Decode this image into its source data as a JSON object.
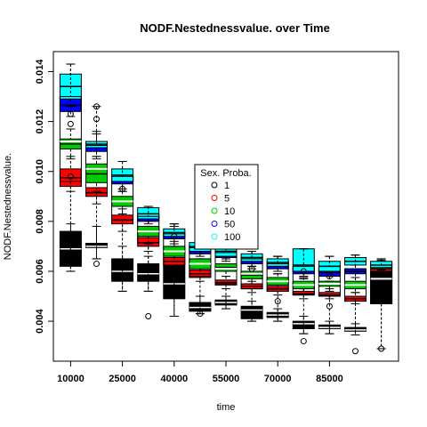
{
  "chart_data": {
    "type": "boxplot",
    "title": "NODF.Nestednessvalue. over Time",
    "xlabel": "time",
    "ylabel": "NODF.Nestednessvalue.",
    "ylim": [
      0.0024,
      0.0148
    ],
    "xlim": [
      5000,
      105000
    ],
    "x_tick_values": [
      10000,
      25000,
      40000,
      55000,
      70000,
      85000
    ],
    "x_tick_labels": [
      "10000",
      "25000",
      "40000",
      "55000",
      "70000",
      "85000"
    ],
    "y_tick_values": [
      0.004,
      0.006,
      0.008,
      0.01,
      0.012,
      0.014
    ],
    "y_tick_labels": [
      "0.004",
      "0.006",
      "0.008",
      "0.010",
      "0.012",
      "0.014"
    ],
    "legend": {
      "title": "Sex. Proba.",
      "placement": "center",
      "entries": [
        "1",
        "5",
        "10",
        "50",
        "100"
      ],
      "colors": [
        "#000000",
        "#ff0000",
        "#00cd00",
        "#0000ff",
        "#00ffff"
      ]
    },
    "overall_median_color": "#ffffff",
    "groups": [
      {
        "x": 10000,
        "series": [
          {
            "name": "1",
            "q1": 0.0062,
            "median": 0.0069,
            "q3": 0.0076,
            "lo": 0.006,
            "hi": 0.0079
          },
          {
            "name": "5",
            "q1": 0.0094,
            "median": 0.00975,
            "q3": 0.0101,
            "lo": 0.0092,
            "hi": 0.0106
          },
          {
            "name": "10",
            "q1": 0.0109,
            "median": 0.0111,
            "q3": 0.0113,
            "lo": 0.0105,
            "hi": 0.0117
          },
          {
            "name": "50",
            "q1": 0.0124,
            "median": 0.01265,
            "q3": 0.013,
            "lo": 0.0122,
            "hi": 0.0132
          },
          {
            "name": "100",
            "q1": 0.0129,
            "median": 0.0134,
            "q3": 0.0139,
            "lo": 0.0126,
            "hi": 0.0143
          },
          {
            "name": "all",
            "q1": 0.0096,
            "median": 0.0112,
            "q3": 0.013,
            "lo": 0.006,
            "hi": 0.0143
          }
        ]
      },
      {
        "x": 17500,
        "series": [
          {
            "name": "1",
            "q1": 0.00695,
            "median": 0.007,
            "q3": 0.00712,
            "lo": 0.0065,
            "hi": 0.0078
          },
          {
            "name": "5",
            "q1": 0.009,
            "median": 0.00915,
            "q3": 0.00935,
            "lo": 0.0087,
            "hi": 0.0097
          },
          {
            "name": "10",
            "q1": 0.00955,
            "median": 0.0099,
            "q3": 0.0103,
            "lo": 0.0092,
            "hi": 0.0106
          },
          {
            "name": "50",
            "q1": 0.0108,
            "median": 0.011,
            "q3": 0.01115,
            "lo": 0.0105,
            "hi": 0.0115
          },
          {
            "name": "100",
            "q1": 0.01095,
            "median": 0.01105,
            "q3": 0.0112,
            "lo": 0.0106,
            "hi": 0.0116
          },
          {
            "name": "all",
            "q1": 0.00915,
            "median": 0.0101,
            "q3": 0.0111,
            "lo": 0.0065,
            "hi": 0.0126
          }
        ]
      },
      {
        "x": 25000,
        "series": [
          {
            "name": "1",
            "q1": 0.0056,
            "median": 0.006,
            "q3": 0.0065,
            "lo": 0.0052,
            "hi": 0.007
          },
          {
            "name": "5",
            "q1": 0.0079,
            "median": 0.00805,
            "q3": 0.00825,
            "lo": 0.0076,
            "hi": 0.0085
          },
          {
            "name": "10",
            "q1": 0.0086,
            "median": 0.0088,
            "q3": 0.009,
            "lo": 0.0083,
            "hi": 0.0092
          },
          {
            "name": "50",
            "q1": 0.0095,
            "median": 0.00965,
            "q3": 0.0098,
            "lo": 0.0092,
            "hi": 0.01
          },
          {
            "name": "100",
            "q1": 0.0096,
            "median": 0.00985,
            "q3": 0.0101,
            "lo": 0.0093,
            "hi": 0.0104
          },
          {
            "name": "all",
            "q1": 0.00805,
            "median": 0.0088,
            "q3": 0.0098,
            "lo": 0.0052,
            "hi": 0.0104
          }
        ]
      },
      {
        "x": 32500,
        "series": [
          {
            "name": "1",
            "q1": 0.0056,
            "median": 0.0059,
            "q3": 0.0063,
            "lo": 0.0052,
            "hi": 0.0066
          },
          {
            "name": "5",
            "q1": 0.007,
            "median": 0.00715,
            "q3": 0.00735,
            "lo": 0.0068,
            "hi": 0.0076
          },
          {
            "name": "10",
            "q1": 0.0074,
            "median": 0.0076,
            "q3": 0.0078,
            "lo": 0.0071,
            "hi": 0.008
          },
          {
            "name": "50",
            "q1": 0.008,
            "median": 0.00815,
            "q3": 0.0083,
            "lo": 0.0078,
            "hi": 0.0085
          },
          {
            "name": "100",
            "q1": 0.0081,
            "median": 0.0083,
            "q3": 0.00855,
            "lo": 0.0079,
            "hi": 0.0086
          },
          {
            "name": "all",
            "q1": 0.00715,
            "median": 0.0076,
            "q3": 0.0082,
            "lo": 0.0052,
            "hi": 0.0086
          }
        ]
      },
      {
        "x": 40000,
        "series": [
          {
            "name": "1",
            "q1": 0.0049,
            "median": 0.0055,
            "q3": 0.00625,
            "lo": 0.0042,
            "hi": 0.0065
          },
          {
            "name": "5",
            "q1": 0.00625,
            "median": 0.0064,
            "q3": 0.00655,
            "lo": 0.006,
            "hi": 0.0068
          },
          {
            "name": "10",
            "q1": 0.0066,
            "median": 0.0068,
            "q3": 0.007,
            "lo": 0.0064,
            "hi": 0.0072
          },
          {
            "name": "50",
            "q1": 0.0073,
            "median": 0.00745,
            "q3": 0.0076,
            "lo": 0.007,
            "hi": 0.0078
          },
          {
            "name": "100",
            "q1": 0.0074,
            "median": 0.00755,
            "q3": 0.0077,
            "lo": 0.0071,
            "hi": 0.0079
          },
          {
            "name": "all",
            "q1": 0.00625,
            "median": 0.0068,
            "q3": 0.0075,
            "lo": 0.0042,
            "hi": 0.0079
          }
        ]
      },
      {
        "x": 47500,
        "series": [
          {
            "name": "1",
            "q1": 0.0044,
            "median": 0.00455,
            "q3": 0.00475,
            "lo": 0.0043,
            "hi": 0.005
          },
          {
            "name": "5",
            "q1": 0.00575,
            "median": 0.0059,
            "q3": 0.00605,
            "lo": 0.0056,
            "hi": 0.0063
          },
          {
            "name": "10",
            "q1": 0.0061,
            "median": 0.0063,
            "q3": 0.0065,
            "lo": 0.0059,
            "hi": 0.0067
          },
          {
            "name": "50",
            "q1": 0.0067,
            "median": 0.0069,
            "q3": 0.0071,
            "lo": 0.0065,
            "hi": 0.0073
          },
          {
            "name": "100",
            "q1": 0.0068,
            "median": 0.00695,
            "q3": 0.00715,
            "lo": 0.0066,
            "hi": 0.0074
          },
          {
            "name": "all",
            "q1": 0.0058,
            "median": 0.0063,
            "q3": 0.007,
            "lo": 0.0043,
            "hi": 0.0074
          }
        ]
      },
      {
        "x": 55000,
        "series": [
          {
            "name": "1",
            "q1": 0.00465,
            "median": 0.00475,
            "q3": 0.00485,
            "lo": 0.0045,
            "hi": 0.005
          },
          {
            "name": "5",
            "q1": 0.00545,
            "median": 0.00555,
            "q3": 0.00565,
            "lo": 0.0053,
            "hi": 0.0058
          },
          {
            "name": "10",
            "q1": 0.006,
            "median": 0.00615,
            "q3": 0.0063,
            "lo": 0.0058,
            "hi": 0.0065
          },
          {
            "name": "50",
            "q1": 0.00655,
            "median": 0.0067,
            "q3": 0.00685,
            "lo": 0.0064,
            "hi": 0.007
          },
          {
            "name": "100",
            "q1": 0.0066,
            "median": 0.0068,
            "q3": 0.007,
            "lo": 0.0065,
            "hi": 0.0073
          },
          {
            "name": "all",
            "q1": 0.0055,
            "median": 0.0061,
            "q3": 0.00675,
            "lo": 0.0045,
            "hi": 0.0073
          }
        ]
      },
      {
        "x": 62500,
        "series": [
          {
            "name": "1",
            "q1": 0.0041,
            "median": 0.00445,
            "q3": 0.0046,
            "lo": 0.004,
            "hi": 0.0048
          },
          {
            "name": "5",
            "q1": 0.0053,
            "median": 0.0054,
            "q3": 0.0055,
            "lo": 0.00515,
            "hi": 0.0056
          },
          {
            "name": "10",
            "q1": 0.0057,
            "median": 0.00585,
            "q3": 0.006,
            "lo": 0.0055,
            "hi": 0.0062
          },
          {
            "name": "50",
            "q1": 0.0063,
            "median": 0.00645,
            "q3": 0.0066,
            "lo": 0.0061,
            "hi": 0.0068
          },
          {
            "name": "100",
            "q1": 0.0064,
            "median": 0.00655,
            "q3": 0.0067,
            "lo": 0.0062,
            "hi": 0.007
          },
          {
            "name": "all",
            "q1": 0.0053,
            "median": 0.0059,
            "q3": 0.0065,
            "lo": 0.004,
            "hi": 0.007
          }
        ]
      },
      {
        "x": 70000,
        "series": [
          {
            "name": "1",
            "q1": 0.00415,
            "median": 0.00425,
            "q3": 0.00435,
            "lo": 0.004,
            "hi": 0.0045
          },
          {
            "name": "5",
            "q1": 0.0052,
            "median": 0.0053,
            "q3": 0.0054,
            "lo": 0.00505,
            "hi": 0.00555
          },
          {
            "name": "10",
            "q1": 0.00545,
            "median": 0.0056,
            "q3": 0.00575,
            "lo": 0.0053,
            "hi": 0.0059
          },
          {
            "name": "50",
            "q1": 0.0061,
            "median": 0.00625,
            "q3": 0.0064,
            "lo": 0.0059,
            "hi": 0.0066
          },
          {
            "name": "100",
            "q1": 0.0062,
            "median": 0.00635,
            "q3": 0.0065,
            "lo": 0.006,
            "hi": 0.0066
          },
          {
            "name": "all",
            "q1": 0.0052,
            "median": 0.0056,
            "q3": 0.0063,
            "lo": 0.004,
            "hi": 0.0066
          }
        ]
      },
      {
        "x": 77500,
        "series": [
          {
            "name": "1",
            "q1": 0.0037,
            "median": 0.0039,
            "q3": 0.004,
            "lo": 0.0035,
            "hi": 0.0042
          },
          {
            "name": "5",
            "q1": 0.00505,
            "median": 0.0051,
            "q3": 0.0052,
            "lo": 0.0049,
            "hi": 0.0053
          },
          {
            "name": "10",
            "q1": 0.0053,
            "median": 0.00545,
            "q3": 0.0056,
            "lo": 0.0051,
            "hi": 0.00575
          },
          {
            "name": "50",
            "q1": 0.0059,
            "median": 0.00605,
            "q3": 0.0062,
            "lo": 0.0057,
            "hi": 0.0064
          },
          {
            "name": "100",
            "q1": 0.006,
            "median": 0.00625,
            "q3": 0.0069,
            "lo": 0.0058,
            "hi": 0.0069
          },
          {
            "name": "all",
            "q1": 0.00505,
            "median": 0.00545,
            "q3": 0.0062,
            "lo": 0.0035,
            "hi": 0.0069
          }
        ]
      },
      {
        "x": 85000,
        "series": [
          {
            "name": "1",
            "q1": 0.0037,
            "median": 0.00375,
            "q3": 0.00385,
            "lo": 0.0035,
            "hi": 0.004
          },
          {
            "name": "5",
            "q1": 0.005,
            "median": 0.00505,
            "q3": 0.00515,
            "lo": 0.0049,
            "hi": 0.0053
          },
          {
            "name": "10",
            "q1": 0.0054,
            "median": 0.0055,
            "q3": 0.0056,
            "lo": 0.0052,
            "hi": 0.0058
          },
          {
            "name": "50",
            "q1": 0.0058,
            "median": 0.00595,
            "q3": 0.0061,
            "lo": 0.0056,
            "hi": 0.0063
          },
          {
            "name": "100",
            "q1": 0.006,
            "median": 0.0062,
            "q3": 0.0064,
            "lo": 0.0058,
            "hi": 0.0066
          },
          {
            "name": "all",
            "q1": 0.00505,
            "median": 0.0055,
            "q3": 0.0062,
            "lo": 0.0035,
            "hi": 0.0066
          }
        ]
      },
      {
        "x": 92500,
        "series": [
          {
            "name": "1",
            "q1": 0.0036,
            "median": 0.00365,
            "q3": 0.00375,
            "lo": 0.00345,
            "hi": 0.0039
          },
          {
            "name": "5",
            "q1": 0.0048,
            "median": 0.0049,
            "q3": 0.005,
            "lo": 0.0047,
            "hi": 0.00515
          },
          {
            "name": "10",
            "q1": 0.0053,
            "median": 0.00545,
            "q3": 0.0056,
            "lo": 0.00515,
            "hi": 0.00575
          },
          {
            "name": "50",
            "q1": 0.0059,
            "median": 0.006,
            "q3": 0.0061,
            "lo": 0.00575,
            "hi": 0.00625
          },
          {
            "name": "100",
            "q1": 0.00625,
            "median": 0.0064,
            "q3": 0.00655,
            "lo": 0.0061,
            "hi": 0.00665
          },
          {
            "name": "all",
            "q1": 0.0049,
            "median": 0.00545,
            "q3": 0.0061,
            "lo": 0.00345,
            "hi": 0.00665
          }
        ]
      },
      {
        "x": 100000,
        "series": [
          {
            "name": "1",
            "q1": 0.0047,
            "median": 0.0057,
            "q3": 0.006,
            "lo": 0.0029,
            "hi": 0.0064
          },
          {
            "name": "5",
            "q1": 0.006,
            "median": 0.0061,
            "q3": 0.0062,
            "lo": 0.0059,
            "hi": 0.0063
          },
          {
            "name": "10",
            "q1": 0.0061,
            "median": 0.0062,
            "q3": 0.0063,
            "lo": 0.006,
            "hi": 0.0064
          },
          {
            "name": "50",
            "q1": 0.00615,
            "median": 0.00625,
            "q3": 0.00635,
            "lo": 0.00605,
            "hi": 0.00645
          },
          {
            "name": "100",
            "q1": 0.00615,
            "median": 0.00625,
            "q3": 0.0064,
            "lo": 0.006,
            "hi": 0.0065
          },
          {
            "name": "all",
            "q1": 0.0047,
            "median": 0.0057,
            "q3": 0.006,
            "lo": 0.0029,
            "hi": 0.0065
          }
        ]
      }
    ],
    "outliers": [
      {
        "x": 10000,
        "y": 0.0119
      },
      {
        "x": 10000,
        "y": 0.0123
      },
      {
        "x": 10000,
        "y": 0.0098
      },
      {
        "x": 17500,
        "y": 0.0126
      },
      {
        "x": 17500,
        "y": 0.0121
      },
      {
        "x": 17500,
        "y": 0.0063
      },
      {
        "x": 25000,
        "y": 0.0093
      },
      {
        "x": 32500,
        "y": 0.0042
      },
      {
        "x": 40000,
        "y": 0.0074
      },
      {
        "x": 47500,
        "y": 0.0043
      },
      {
        "x": 62500,
        "y": 0.0061
      },
      {
        "x": 70000,
        "y": 0.0048
      },
      {
        "x": 77500,
        "y": 0.006
      },
      {
        "x": 77500,
        "y": 0.0032
      },
      {
        "x": 85000,
        "y": 0.0046
      },
      {
        "x": 85000,
        "y": 0.0058
      },
      {
        "x": 92500,
        "y": 0.0028
      },
      {
        "x": 100000,
        "y": 0.0029
      }
    ]
  }
}
